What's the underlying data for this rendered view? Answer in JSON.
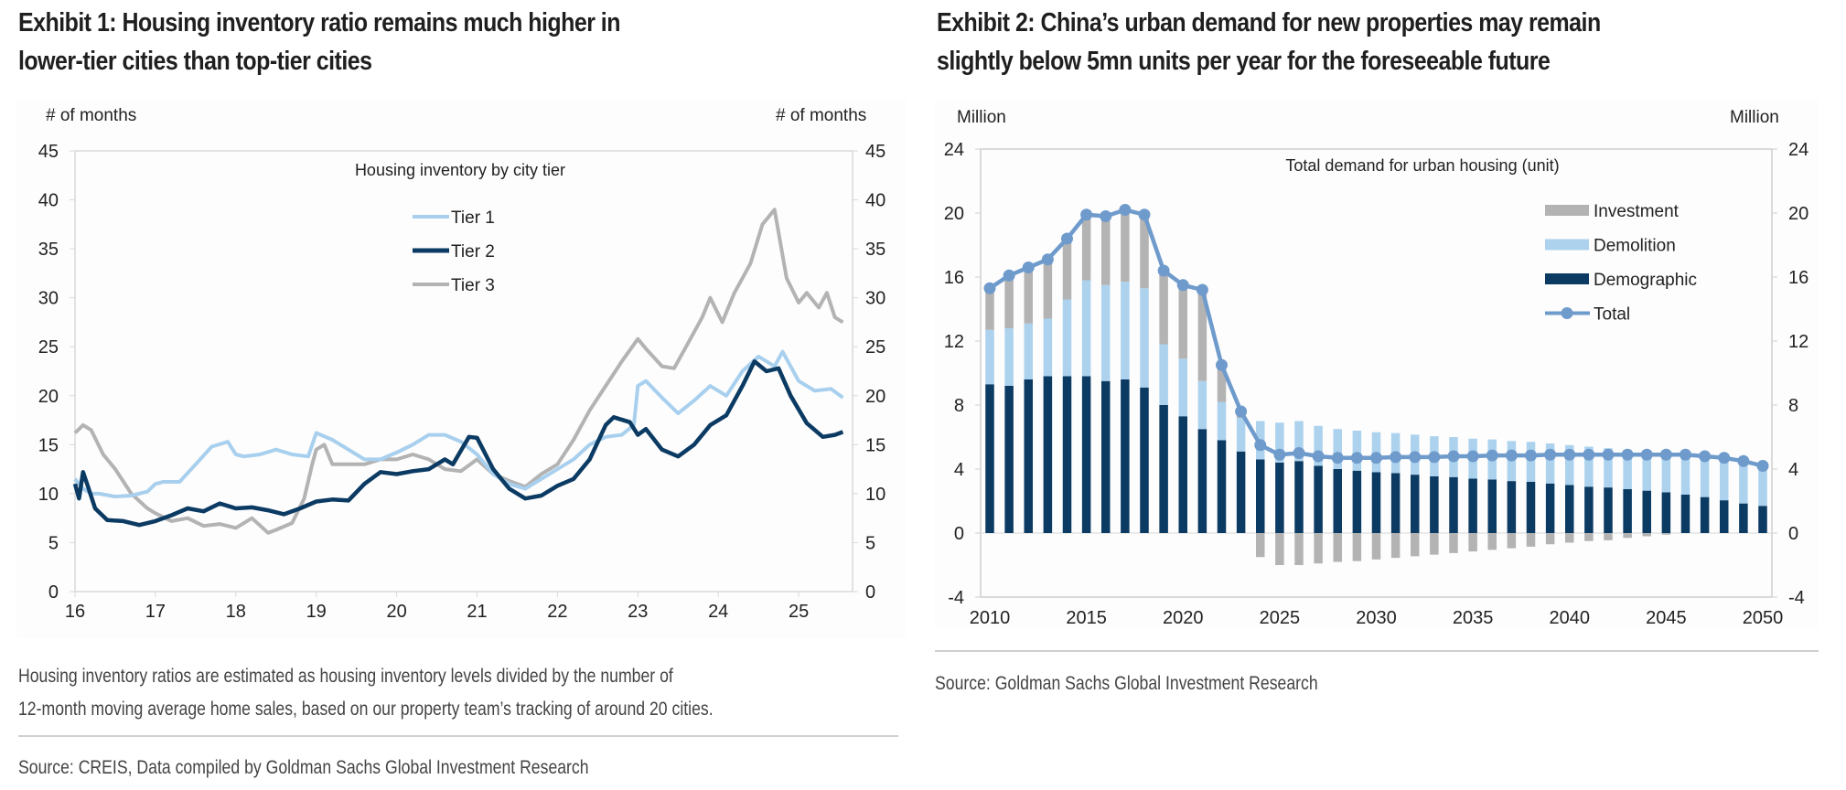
{
  "exhibit1": {
    "title_line1": "Exhibit 1: Housing inventory ratio remains much higher in",
    "title_line2": "lower-tier cities than top-tier cities",
    "left_unit": "# of months",
    "right_unit": "# of months",
    "note_line1": "Housing inventory ratios are estimated as housing inventory levels divided by the number of",
    "note_line2": "12-month moving average home sales, based on our property team’s tracking of around 20 cities.",
    "source": "Source: CREIS, Data compiled by Goldman Sachs Global Investment Research"
  },
  "exhibit2": {
    "title_line1": "Exhibit 2: China’s urban demand for new properties may remain",
    "title_line2": "slightly below 5mn units per year for the foreseeable future",
    "left_unit": "Million",
    "right_unit": "Million",
    "source": "Source: Goldman Sachs Global Investment Research"
  },
  "chart_data": [
    {
      "type": "line",
      "title": "Housing inventory by city tier",
      "xlabel": "",
      "ylabel": "# of months",
      "y2label": "# of months",
      "ylim": [
        0,
        45
      ],
      "yticks": [
        0,
        5,
        10,
        15,
        20,
        25,
        30,
        35,
        40,
        45
      ],
      "xlim": [
        16,
        25.6
      ],
      "xticks": [
        "16",
        "17",
        "18",
        "19",
        "20",
        "21",
        "22",
        "23",
        "24",
        "25"
      ],
      "legend_position": "top-center",
      "grid": false,
      "colors": {
        "Tier 1": "#a8d0ee",
        "Tier 2": "#0b3a63",
        "Tier 3": "#b3b3b3"
      },
      "series": [
        {
          "name": "Tier 1",
          "x": [
            16.0,
            16.1,
            16.2,
            16.3,
            16.5,
            16.7,
            16.9,
            17.0,
            17.1,
            17.3,
            17.5,
            17.7,
            17.9,
            18.0,
            18.1,
            18.3,
            18.5,
            18.7,
            18.9,
            19.0,
            19.2,
            19.4,
            19.6,
            19.8,
            20.0,
            20.2,
            20.4,
            20.6,
            20.8,
            21.0,
            21.2,
            21.4,
            21.6,
            21.8,
            22.0,
            22.2,
            22.4,
            22.6,
            22.8,
            22.95,
            23.0,
            23.1,
            23.3,
            23.5,
            23.7,
            23.9,
            24.1,
            24.3,
            24.5,
            24.7,
            24.8,
            25.0,
            25.2,
            25.4,
            25.55
          ],
          "y": [
            11.5,
            10.5,
            10.0,
            10.0,
            9.7,
            9.8,
            10.2,
            11.0,
            11.2,
            11.2,
            13.0,
            14.8,
            15.3,
            14.0,
            13.8,
            14.0,
            14.5,
            14.0,
            13.8,
            16.2,
            15.5,
            14.5,
            13.5,
            13.5,
            14.2,
            15.0,
            16.0,
            16.0,
            15.3,
            14.0,
            12.0,
            11.0,
            10.5,
            11.5,
            12.5,
            13.5,
            15.0,
            15.8,
            16.0,
            17.0,
            21.0,
            21.5,
            19.8,
            18.2,
            19.5,
            21.0,
            20.0,
            22.5,
            24.0,
            23.0,
            24.5,
            21.5,
            20.5,
            20.7,
            19.8
          ]
        },
        {
          "name": "Tier 2",
          "x": [
            16.0,
            16.05,
            16.1,
            16.15,
            16.25,
            16.4,
            16.6,
            16.8,
            17.0,
            17.2,
            17.4,
            17.6,
            17.8,
            18.0,
            18.2,
            18.4,
            18.6,
            18.8,
            19.0,
            19.2,
            19.4,
            19.6,
            19.8,
            20.0,
            20.2,
            20.4,
            20.6,
            20.7,
            20.9,
            21.0,
            21.2,
            21.4,
            21.6,
            21.8,
            22.0,
            22.2,
            22.4,
            22.6,
            22.7,
            22.9,
            23.0,
            23.1,
            23.3,
            23.5,
            23.7,
            23.9,
            24.1,
            24.3,
            24.45,
            24.6,
            24.75,
            24.9,
            25.1,
            25.3,
            25.45,
            25.55
          ],
          "y": [
            11.0,
            9.5,
            12.2,
            11.0,
            8.5,
            7.3,
            7.2,
            6.8,
            7.2,
            7.8,
            8.5,
            8.2,
            9.0,
            8.5,
            8.6,
            8.3,
            7.9,
            8.5,
            9.2,
            9.4,
            9.3,
            11.0,
            12.2,
            12.0,
            12.3,
            12.5,
            13.5,
            13.0,
            15.8,
            15.7,
            12.5,
            10.5,
            9.5,
            9.8,
            10.8,
            11.5,
            13.5,
            17.0,
            17.8,
            17.3,
            16.0,
            16.6,
            14.5,
            13.8,
            15.0,
            17.0,
            18.0,
            21.0,
            23.5,
            22.5,
            22.8,
            20.0,
            17.2,
            15.8,
            16.0,
            16.3
          ]
        },
        {
          "name": "Tier 3",
          "x": [
            16.0,
            16.1,
            16.2,
            16.35,
            16.5,
            16.7,
            16.9,
            17.0,
            17.2,
            17.4,
            17.6,
            17.8,
            18.0,
            18.2,
            18.4,
            18.5,
            18.7,
            18.85,
            18.95,
            19.0,
            19.1,
            19.2,
            19.4,
            19.6,
            19.8,
            20.0,
            20.2,
            20.4,
            20.6,
            20.8,
            21.0,
            21.2,
            21.4,
            21.6,
            21.8,
            22.0,
            22.2,
            22.4,
            22.6,
            22.8,
            23.0,
            23.1,
            23.3,
            23.45,
            23.6,
            23.8,
            23.9,
            24.05,
            24.2,
            24.4,
            24.55,
            24.7,
            24.85,
            25.0,
            25.1,
            25.25,
            25.35,
            25.45,
            25.55
          ],
          "y": [
            16.2,
            17.0,
            16.5,
            14.0,
            12.5,
            10.0,
            8.5,
            8.0,
            7.2,
            7.5,
            6.7,
            6.9,
            6.5,
            7.5,
            6.0,
            6.3,
            7.0,
            9.5,
            13.0,
            14.5,
            15.0,
            13.0,
            13.0,
            13.0,
            13.5,
            13.5,
            14.0,
            13.5,
            12.5,
            12.3,
            13.5,
            12.0,
            11.3,
            10.7,
            12.0,
            13.0,
            15.5,
            18.5,
            21.0,
            23.5,
            25.8,
            24.8,
            23.0,
            22.8,
            25.0,
            28.0,
            30.0,
            27.5,
            30.5,
            33.5,
            37.5,
            39.0,
            32.0,
            29.5,
            30.5,
            29.0,
            30.5,
            28.0,
            27.5
          ]
        }
      ]
    },
    {
      "type": "bar",
      "stacked": true,
      "title": "Total demand for urban housing (unit)",
      "xlabel": "",
      "ylabel": "Million",
      "y2label": "Million",
      "ylim": [
        -4,
        24
      ],
      "yticks": [
        -4,
        0,
        4,
        8,
        12,
        16,
        20,
        24
      ],
      "xticks": [
        "2010",
        "2015",
        "2020",
        "2025",
        "2030",
        "2035",
        "2040",
        "2045",
        "2050"
      ],
      "legend_position": "right",
      "grid": false,
      "colors": {
        "Investment": "#b3b3b3",
        "Demolition": "#acd2ee",
        "Demographic": "#0b3a63",
        "Total": "#6f9bcc"
      },
      "categories": [
        "2010",
        "2011",
        "2012",
        "2013",
        "2014",
        "2015",
        "2016",
        "2017",
        "2018",
        "2019",
        "2020",
        "2021",
        "2022",
        "2023",
        "2024",
        "2025",
        "2026",
        "2027",
        "2028",
        "2029",
        "2030",
        "2031",
        "2032",
        "2033",
        "2034",
        "2035",
        "2036",
        "2037",
        "2038",
        "2039",
        "2040",
        "2041",
        "2042",
        "2043",
        "2044",
        "2045",
        "2046",
        "2047",
        "2048",
        "2049",
        "2050"
      ],
      "series": [
        {
          "name": "Demographic",
          "kind": "bar",
          "values": [
            9.3,
            9.2,
            9.6,
            9.8,
            9.8,
            9.8,
            9.5,
            9.6,
            9.1,
            8.0,
            7.3,
            6.5,
            5.8,
            5.1,
            4.6,
            4.4,
            4.5,
            4.2,
            4.0,
            3.9,
            3.8,
            3.75,
            3.65,
            3.55,
            3.5,
            3.4,
            3.35,
            3.25,
            3.2,
            3.1,
            3.0,
            2.9,
            2.85,
            2.75,
            2.65,
            2.55,
            2.4,
            2.25,
            2.05,
            1.85,
            1.7
          ]
        },
        {
          "name": "Demolition",
          "kind": "bar",
          "values": [
            3.4,
            3.6,
            3.5,
            3.6,
            4.8,
            6.0,
            6.0,
            6.1,
            6.2,
            3.8,
            3.6,
            3.0,
            2.4,
            2.1,
            2.4,
            2.5,
            2.5,
            2.5,
            2.5,
            2.5,
            2.5,
            2.5,
            2.5,
            2.5,
            2.5,
            2.5,
            2.5,
            2.5,
            2.5,
            2.5,
            2.5,
            2.5,
            2.45,
            2.45,
            2.45,
            2.45,
            2.55,
            2.55,
            2.6,
            2.6,
            2.5
          ]
        },
        {
          "name": "Investment",
          "kind": "bar",
          "values": [
            2.6,
            3.3,
            3.5,
            3.7,
            3.8,
            4.1,
            4.3,
            4.5,
            4.6,
            4.6,
            4.6,
            5.7,
            2.3,
            0.4,
            -1.5,
            -2.0,
            -2.0,
            -1.9,
            -1.8,
            -1.75,
            -1.65,
            -1.55,
            -1.45,
            -1.35,
            -1.25,
            -1.15,
            -1.05,
            -0.95,
            -0.85,
            -0.7,
            -0.6,
            -0.5,
            -0.45,
            -0.3,
            -0.2,
            -0.1,
            0.0,
            0.0,
            0.0,
            0.0,
            0.0
          ]
        },
        {
          "name": "Total",
          "kind": "line",
          "marker": "circle",
          "values": [
            15.3,
            16.1,
            16.6,
            17.1,
            18.4,
            19.9,
            19.8,
            20.2,
            19.9,
            16.4,
            15.5,
            15.2,
            10.5,
            7.6,
            5.5,
            4.9,
            5.0,
            4.8,
            4.7,
            4.7,
            4.7,
            4.75,
            4.75,
            4.75,
            4.8,
            4.8,
            4.85,
            4.85,
            4.85,
            4.9,
            4.9,
            4.9,
            4.9,
            4.9,
            4.9,
            4.9,
            4.9,
            4.8,
            4.7,
            4.5,
            4.2
          ]
        }
      ]
    }
  ]
}
